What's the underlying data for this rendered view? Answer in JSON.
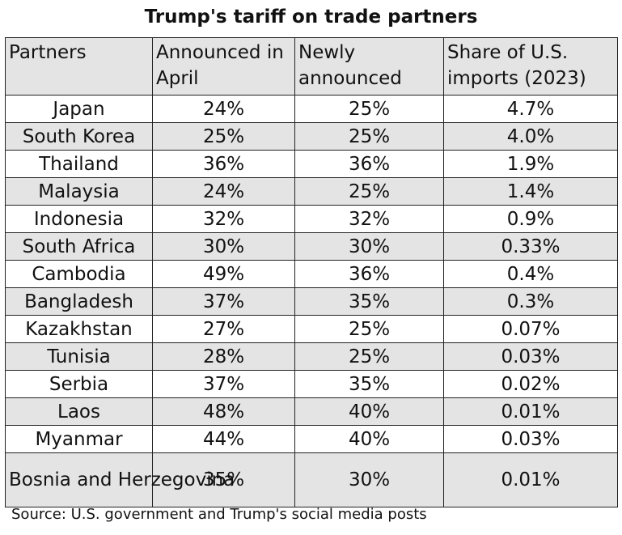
{
  "chart_data": {
    "type": "table",
    "title": "Trump's tariff on trade partners",
    "columns": [
      "Partners",
      "Announced in April",
      "Newly announced",
      "Share of U.S. imports (2023)"
    ],
    "rows": [
      {
        "partner": "Japan",
        "april": "24%",
        "new": "25%",
        "share": "4.7%"
      },
      {
        "partner": "South Korea",
        "april": "25%",
        "new": "25%",
        "share": "4.0%"
      },
      {
        "partner": "Thailand",
        "april": "36%",
        "new": "36%",
        "share": "1.9%"
      },
      {
        "partner": "Malaysia",
        "april": "24%",
        "new": "25%",
        "share": "1.4%"
      },
      {
        "partner": "Indonesia",
        "april": "32%",
        "new": "32%",
        "share": "0.9%"
      },
      {
        "partner": "South Africa",
        "april": "30%",
        "new": "30%",
        "share": "0.33%"
      },
      {
        "partner": "Cambodia",
        "april": "49%",
        "new": "36%",
        "share": "0.4%"
      },
      {
        "partner": "Bangladesh",
        "april": "37%",
        "new": "35%",
        "share": "0.3%"
      },
      {
        "partner": "Kazakhstan",
        "april": "27%",
        "new": "25%",
        "share": "0.07%"
      },
      {
        "partner": "Tunisia",
        "april": "28%",
        "new": "25%",
        "share": "0.03%"
      },
      {
        "partner": "Serbia",
        "april": "37%",
        "new": "35%",
        "share": "0.02%"
      },
      {
        "partner": "Laos",
        "april": "48%",
        "new": "40%",
        "share": "0.01%"
      },
      {
        "partner": "Myanmar",
        "april": "44%",
        "new": "40%",
        "share": "0.03%"
      },
      {
        "partner": "Bosnia and\nHerzegovina",
        "april": "35%",
        "new": "30%",
        "share": "0.01%"
      }
    ],
    "source": "Source: U.S. government and Trump's social media posts",
    "colors": {
      "header_bg": "#e4e4e4",
      "alt_row_bg": "#e4e4e4",
      "border": "#222222"
    }
  }
}
